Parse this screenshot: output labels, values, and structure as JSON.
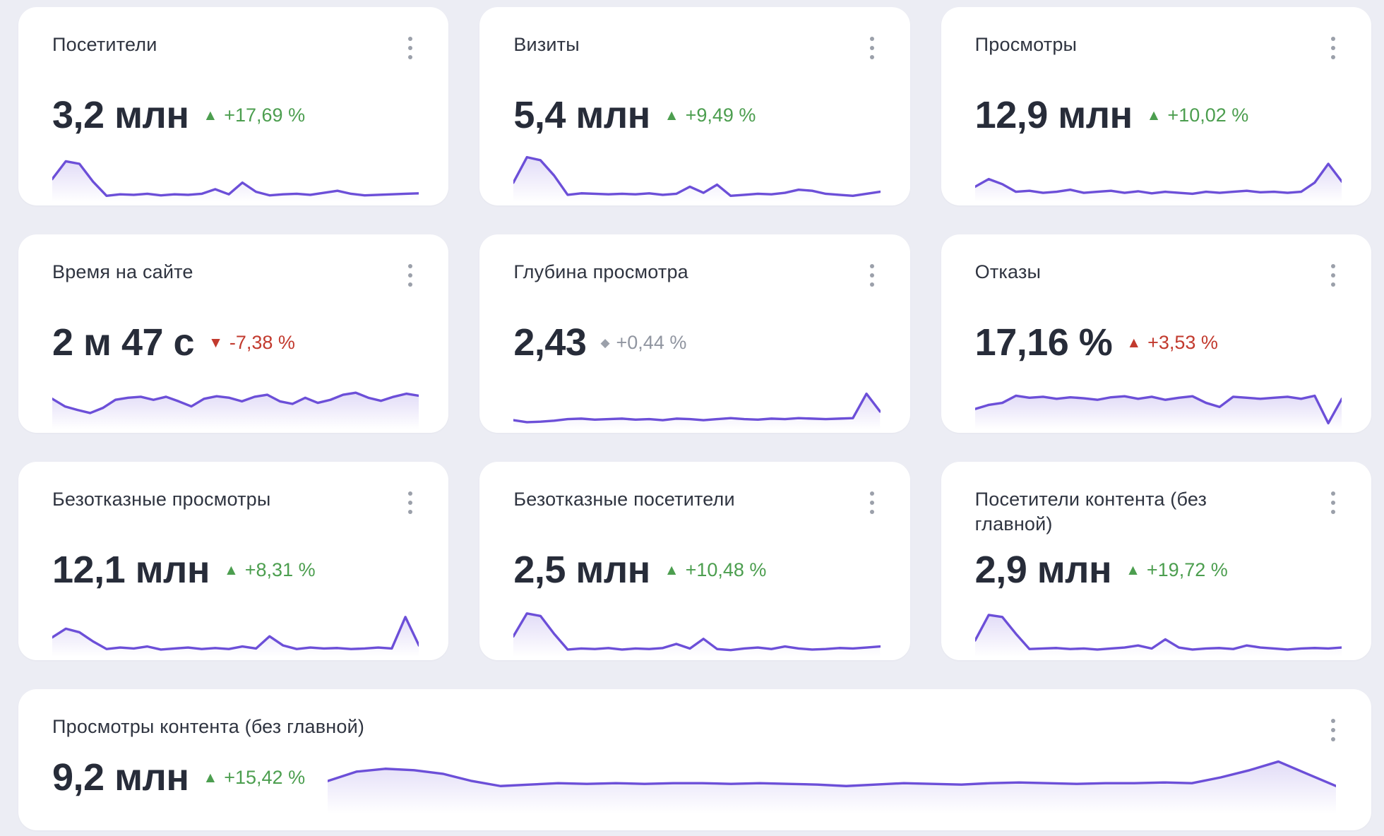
{
  "page": {
    "background_color": "#ECEDF4",
    "card_background": "#FFFFFF"
  },
  "colors": {
    "title_text": "#2F3440",
    "value_text": "#272C39",
    "positive": "#4C9E4F",
    "negative": "#C23A2E",
    "neutral": "#9095A0",
    "sparkline": "#6C4FD8",
    "menu_dots": "#9BA0AA"
  },
  "icons": {
    "kebab_menu": "kebab-menu-icon",
    "trend_up": "▲",
    "trend_down": "▼",
    "trend_flat": "◆"
  },
  "cards": [
    {
      "title": "Посетители",
      "value": "3,2 млн",
      "delta": "+17,69 %",
      "trend": "up",
      "sentiment": "positive",
      "trend_icon_glyph": "▲",
      "wide": false,
      "spark": [
        55,
        20,
        25,
        60,
        88,
        85,
        86,
        84,
        87,
        85,
        86,
        84,
        75,
        85,
        62,
        80,
        87,
        85,
        84,
        86,
        82,
        78,
        84,
        87,
        86,
        85,
        84,
        83
      ]
    },
    {
      "title": "Визиты",
      "value": "5,4 млн",
      "delta": "+9,49 %",
      "trend": "up",
      "sentiment": "positive",
      "trend_icon_glyph": "▲",
      "wide": false,
      "spark": [
        62,
        12,
        18,
        48,
        86,
        83,
        84,
        85,
        84,
        85,
        83,
        86,
        84,
        70,
        82,
        66,
        88,
        86,
        84,
        85,
        82,
        76,
        78,
        84,
        86,
        88,
        84,
        80
      ]
    },
    {
      "title": "Просмотры",
      "value": "12,9 млн",
      "delta": "+10,02 %",
      "trend": "up",
      "sentiment": "positive",
      "trend_icon_glyph": "▲",
      "wide": false,
      "spark": [
        70,
        55,
        65,
        80,
        78,
        82,
        80,
        76,
        82,
        80,
        78,
        82,
        79,
        83,
        80,
        82,
        84,
        80,
        82,
        80,
        78,
        81,
        80,
        82,
        80,
        62,
        25,
        60
      ]
    },
    {
      "title": "Время на сайте",
      "value": "2 м 47 с",
      "delta": "-7,38 %",
      "trend": "down",
      "sentiment": "negative",
      "trend_icon_glyph": "▼",
      "wide": false,
      "spark": [
        40,
        55,
        62,
        68,
        58,
        42,
        38,
        36,
        42,
        36,
        45,
        55,
        40,
        35,
        38,
        45,
        36,
        32,
        45,
        50,
        38,
        48,
        42,
        32,
        28,
        38,
        44,
        36,
        30,
        34
      ]
    },
    {
      "title": "Глубина просмотра",
      "value": "2,43",
      "delta": "+0,44 %",
      "trend": "flat",
      "sentiment": "neutral",
      "trend_icon_glyph": "◆",
      "wide": false,
      "spark": [
        82,
        86,
        85,
        83,
        80,
        79,
        81,
        80,
        79,
        81,
        80,
        82,
        79,
        80,
        82,
        80,
        78,
        80,
        81,
        79,
        80,
        78,
        79,
        80,
        79,
        78,
        30,
        65
      ]
    },
    {
      "title": "Отказы",
      "value": "17,16 %",
      "delta": "+3,53 %",
      "trend": "up",
      "sentiment": "negative",
      "trend_icon_glyph": "▲",
      "wide": false,
      "spark": [
        60,
        52,
        48,
        34,
        38,
        36,
        40,
        37,
        39,
        42,
        37,
        35,
        40,
        36,
        42,
        38,
        35,
        48,
        56,
        36,
        38,
        40,
        38,
        36,
        40,
        34,
        88,
        40
      ]
    },
    {
      "title": "Безотказные просмотры",
      "value": "12,1 млн",
      "delta": "+8,31 %",
      "trend": "up",
      "sentiment": "positive",
      "trend_icon_glyph": "▲",
      "wide": false,
      "spark": [
        62,
        45,
        52,
        70,
        85,
        82,
        84,
        80,
        86,
        84,
        82,
        85,
        83,
        85,
        80,
        84,
        60,
        78,
        85,
        82,
        84,
        83,
        85,
        84,
        82,
        84,
        22,
        78
      ]
    },
    {
      "title": "Безотказные посетители",
      "value": "2,5 млн",
      "delta": "+10,48 %",
      "trend": "up",
      "sentiment": "positive",
      "trend_icon_glyph": "▲",
      "wide": false,
      "spark": [
        60,
        15,
        20,
        55,
        86,
        84,
        85,
        83,
        86,
        84,
        85,
        83,
        75,
        84,
        65,
        85,
        87,
        84,
        82,
        85,
        80,
        84,
        86,
        85,
        83,
        84,
        82,
        80
      ]
    },
    {
      "title": "Посетители контента (без главной)",
      "value": "2,9 млн",
      "delta": "+19,72 %",
      "trend": "up",
      "sentiment": "positive",
      "trend_icon_glyph": "▲",
      "wide": false,
      "spark": [
        68,
        18,
        22,
        55,
        85,
        84,
        83,
        85,
        84,
        86,
        84,
        82,
        78,
        84,
        66,
        82,
        86,
        84,
        83,
        85,
        78,
        82,
        84,
        86,
        84,
        83,
        84,
        82
      ]
    },
    {
      "title": "Просмотры контента (без главной)",
      "value": "9,2 млн",
      "delta": "+15,42 %",
      "trend": "up",
      "sentiment": "positive",
      "trend_icon_glyph": "▲",
      "wide": true,
      "spark": [
        55,
        42,
        38,
        40,
        45,
        55,
        62,
        60,
        58,
        59,
        58,
        59,
        58,
        58,
        59,
        58,
        59,
        60,
        62,
        60,
        58,
        59,
        60,
        58,
        57,
        58,
        59,
        58,
        58,
        57,
        58,
        50,
        40,
        28,
        45,
        62
      ]
    }
  ]
}
